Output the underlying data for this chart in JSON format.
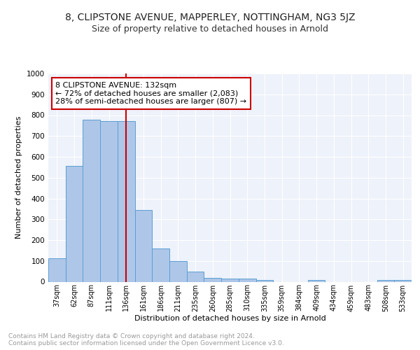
{
  "title1": "8, CLIPSTONE AVENUE, MAPPERLEY, NOTTINGHAM, NG3 5JZ",
  "title2": "Size of property relative to detached houses in Arnold",
  "xlabel": "Distribution of detached houses by size in Arnold",
  "ylabel": "Number of detached properties",
  "categories": [
    "37sqm",
    "62sqm",
    "87sqm",
    "111sqm",
    "136sqm",
    "161sqm",
    "186sqm",
    "211sqm",
    "235sqm",
    "260sqm",
    "285sqm",
    "310sqm",
    "335sqm",
    "359sqm",
    "384sqm",
    "409sqm",
    "434sqm",
    "459sqm",
    "483sqm",
    "508sqm",
    "533sqm"
  ],
  "values": [
    113,
    557,
    778,
    770,
    770,
    345,
    160,
    98,
    50,
    20,
    14,
    14,
    7,
    0,
    0,
    8,
    0,
    0,
    0,
    8,
    8
  ],
  "bar_color": "#aec6e8",
  "bar_edge_color": "#5a9fd4",
  "vline_x": 4,
  "vline_color": "#cc0000",
  "annotation_text": "8 CLIPSTONE AVENUE: 132sqm\n← 72% of detached houses are smaller (2,083)\n28% of semi-detached houses are larger (807) →",
  "annotation_box_color": "#ffffff",
  "annotation_box_edge": "#cc0000",
  "ylim": [
    0,
    1000
  ],
  "yticks": [
    0,
    100,
    200,
    300,
    400,
    500,
    600,
    700,
    800,
    900,
    1000
  ],
  "background_color": "#eef2fa",
  "footer_text": "Contains HM Land Registry data © Crown copyright and database right 2024.\nContains public sector information licensed under the Open Government Licence v3.0.",
  "grid_color": "#ffffff",
  "title1_fontsize": 10,
  "title2_fontsize": 9,
  "annotation_fontsize": 8,
  "footer_fontsize": 6.5
}
